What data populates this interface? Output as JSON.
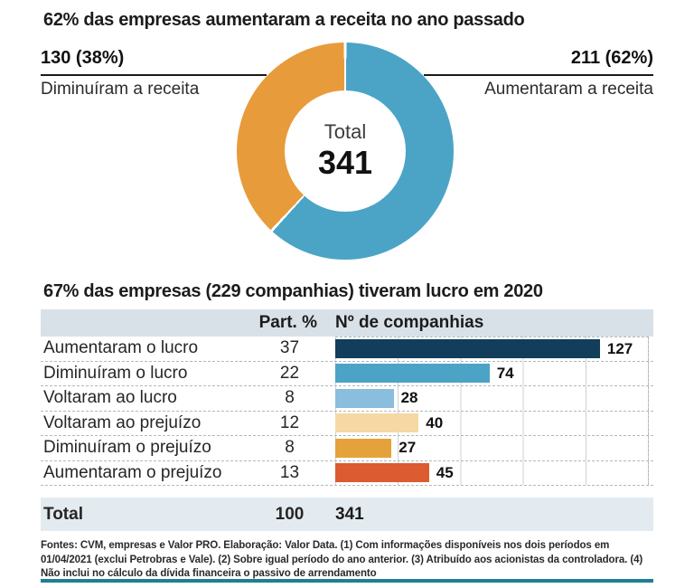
{
  "ui": {
    "donut": {
      "left_callout_value": "130 (38%)",
      "right_callout_value": "211 (62%)"
    },
    "footer": "Fontes: CVM, empresas e Valor PRO. Elaboração: Valor Data. (1) Com informações disponíveis nos dois períodos em 01/04/2021 (exclui Petrobras e Vale). (2) Sobre igual período do ano anterior. (3) Atribuído aos acionistas da controladora. (4) Não inclui no cálculo da dívida financeira o passivo de arrendamento"
  },
  "chart_data": [
    {
      "type": "pie",
      "style": "donut",
      "title": "62% das empresas aumentaram a receita no ano passado",
      "labels": [
        "Aumentaram a receita",
        "Diminuíram a receita"
      ],
      "values": [
        211,
        130
      ],
      "percentages": [
        62,
        38
      ],
      "colors": [
        "#4ba4c6",
        "#e89b3b"
      ],
      "total_label": "Total",
      "total": 341,
      "start_angle_deg": 0,
      "direction": "clockwise"
    },
    {
      "type": "bar",
      "orientation": "horizontal",
      "title": "67% das empresas (229 companhias) tiveram lucro em 2020",
      "categories": [
        "Aumentaram o lucro",
        "Diminuíram o lucro",
        "Voltaram ao lucro",
        "Voltaram ao prejuízo",
        "Diminuíram o prejuízo",
        "Aumentaram o prejuízo"
      ],
      "series": [
        {
          "name": "Part. %",
          "values": [
            37,
            22,
            8,
            12,
            8,
            13
          ]
        },
        {
          "name": "Nº de companhias",
          "values": [
            127,
            74,
            28,
            40,
            27,
            45
          ]
        }
      ],
      "bar_colors": [
        "#123e5c",
        "#4ba4c6",
        "#8abedd",
        "#f5d8a3",
        "#e6a23a",
        "#dc5b30"
      ],
      "xlim": [
        0,
        150
      ],
      "gridline_interval": 30,
      "grid": true,
      "total": {
        "label": "Total",
        "part": 100,
        "companies": 341
      }
    }
  ]
}
